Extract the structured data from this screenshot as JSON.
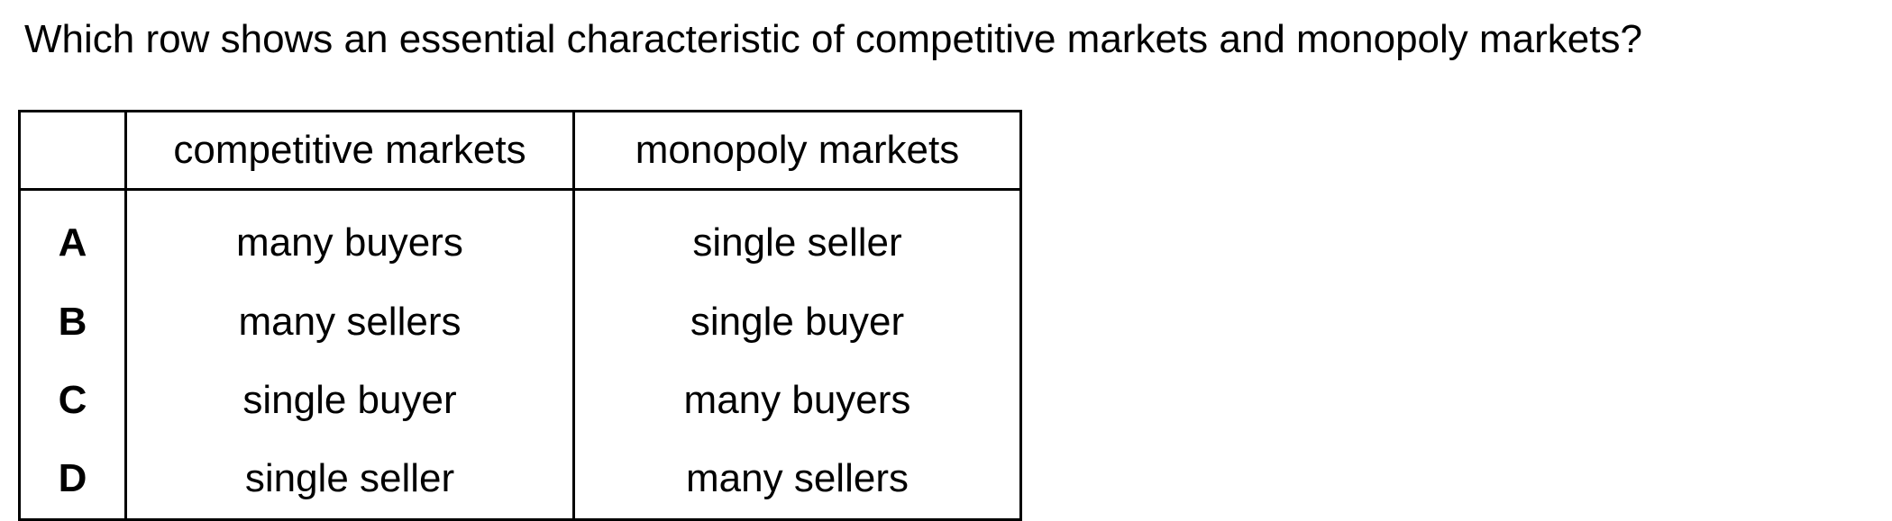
{
  "question": "Which row shows an essential characteristic of competitive markets and monopoly markets?",
  "table": {
    "headers": [
      "",
      "competitive markets",
      "monopoly markets"
    ],
    "rows": [
      {
        "letter": "A",
        "competitive": "many buyers",
        "monopoly": "single seller"
      },
      {
        "letter": "B",
        "competitive": "many sellers",
        "monopoly": "single buyer"
      },
      {
        "letter": "C",
        "competitive": "single buyer",
        "monopoly": "many buyers"
      },
      {
        "letter": "D",
        "competitive": "single seller",
        "monopoly": "many sellers"
      }
    ]
  }
}
